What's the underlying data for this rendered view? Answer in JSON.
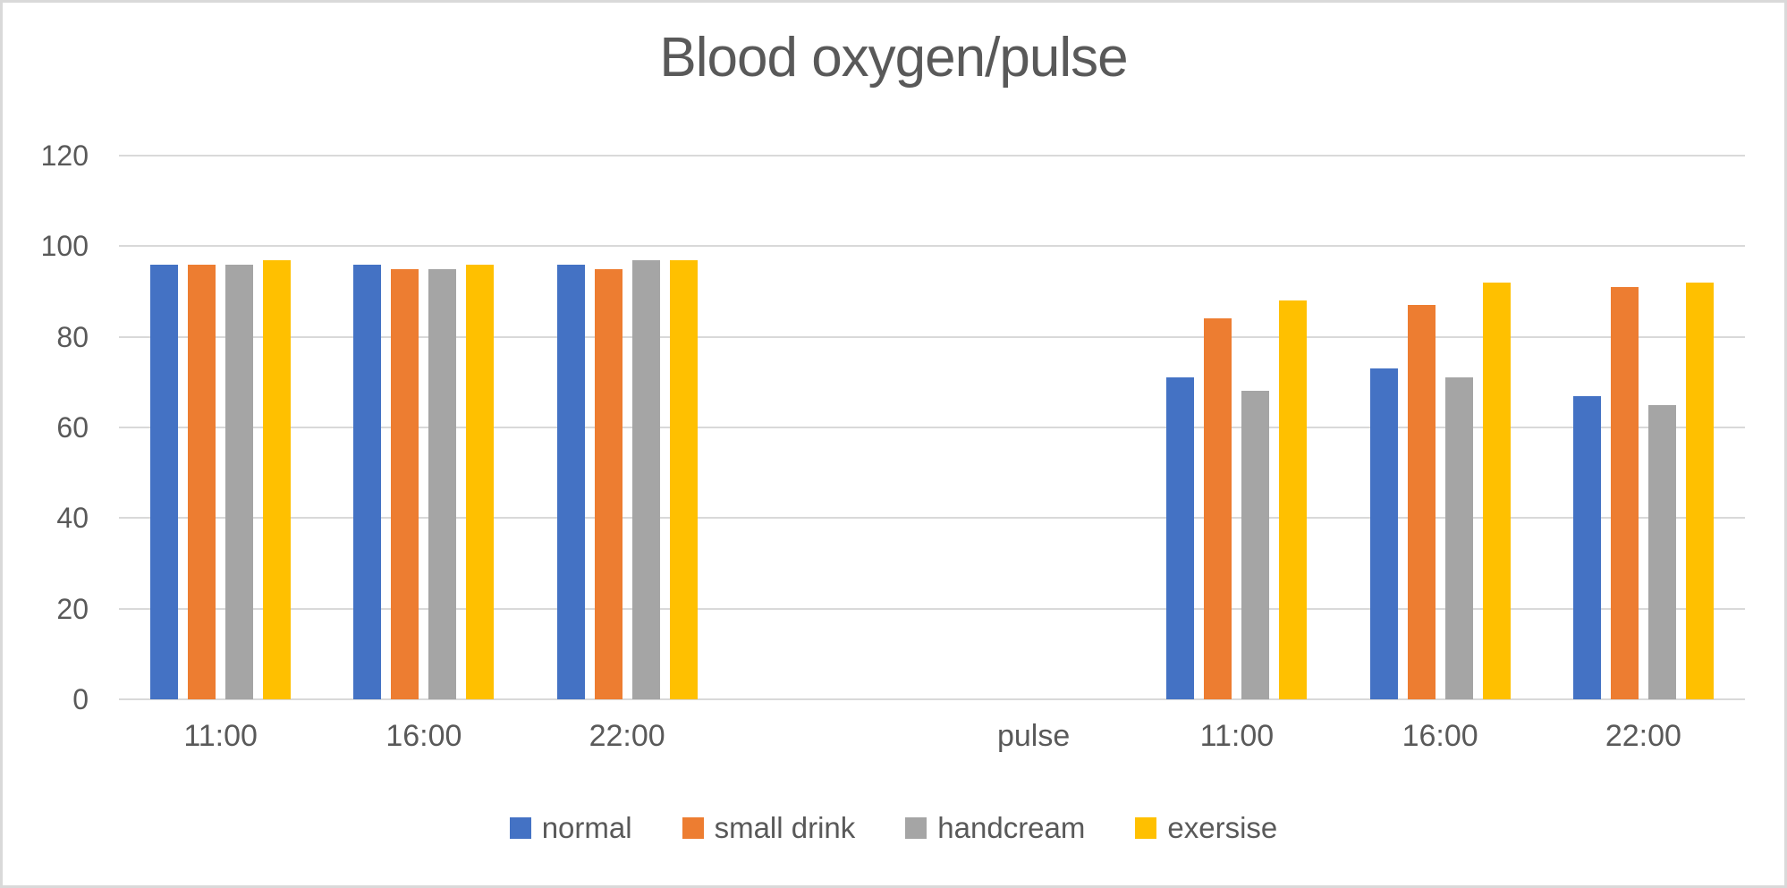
{
  "chart_data": {
    "type": "bar",
    "title": "Blood oxygen/pulse",
    "categories": [
      "11:00",
      "16:00",
      "22:00",
      "",
      "pulse",
      "11:00",
      "16:00",
      "22:00"
    ],
    "series": [
      {
        "name": "normal",
        "color": "#4472C4",
        "values": [
          96,
          96,
          96,
          null,
          null,
          71,
          73,
          67
        ]
      },
      {
        "name": "small drink",
        "color": "#ED7D31",
        "values": [
          96,
          95,
          95,
          null,
          null,
          84,
          87,
          91
        ]
      },
      {
        "name": "handcream",
        "color": "#A5A5A5",
        "values": [
          96,
          95,
          97,
          null,
          null,
          68,
          71,
          65
        ]
      },
      {
        "name": "exersise",
        "color": "#FFC000",
        "values": [
          97,
          96,
          97,
          null,
          null,
          88,
          92,
          92
        ]
      }
    ],
    "y_axis": {
      "min": 0,
      "max": 120,
      "step": 20,
      "ticks": [
        0,
        20,
        40,
        60,
        80,
        100,
        120
      ]
    },
    "grid": true,
    "legend_position": "bottom",
    "colors": {
      "text": "#595959",
      "gridline": "#D9D9D9",
      "border": "#D9D9D9",
      "background": "#FFFFFF"
    }
  }
}
